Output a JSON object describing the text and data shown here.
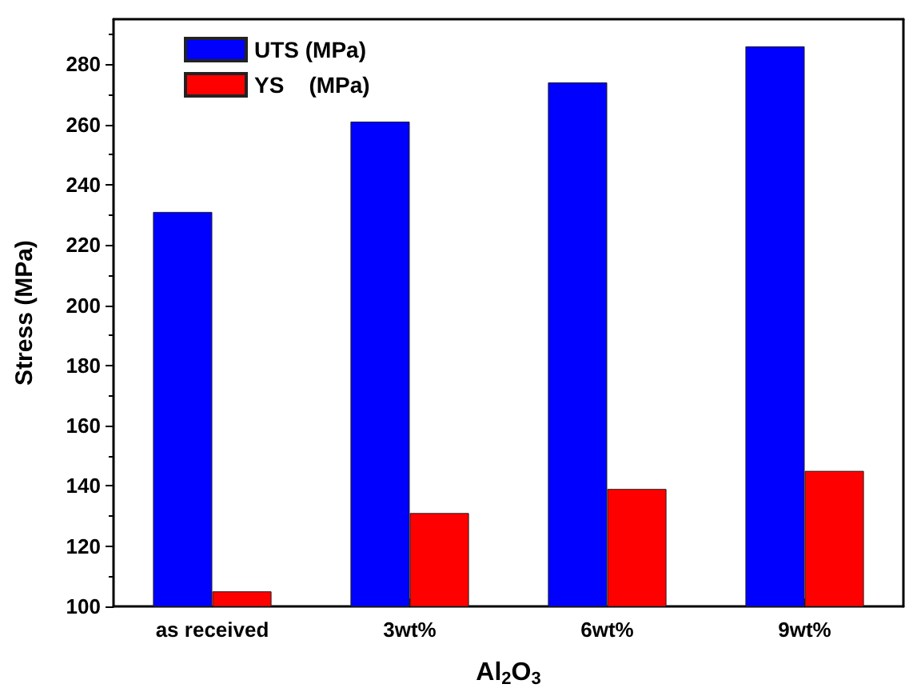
{
  "chart_data": {
    "type": "bar",
    "xlabel": "Al$_{2}$O$_{3}$",
    "ylabel": "Stress (MPa)",
    "categories": [
      "as received",
      "3wt%",
      "6wt%",
      "9wt%"
    ],
    "series": [
      {
        "name": "UTS (MPa)",
        "color": "#0000ff",
        "values": [
          231,
          261,
          274,
          286
        ]
      },
      {
        "name": "YS    (MPa)",
        "color": "#ff0000",
        "values": [
          105,
          131,
          139,
          145
        ]
      }
    ],
    "ylim": [
      100,
      295
    ],
    "yticks": [
      100,
      120,
      140,
      160,
      180,
      200,
      220,
      240,
      260,
      280
    ],
    "grid": false,
    "legend": "top left"
  }
}
